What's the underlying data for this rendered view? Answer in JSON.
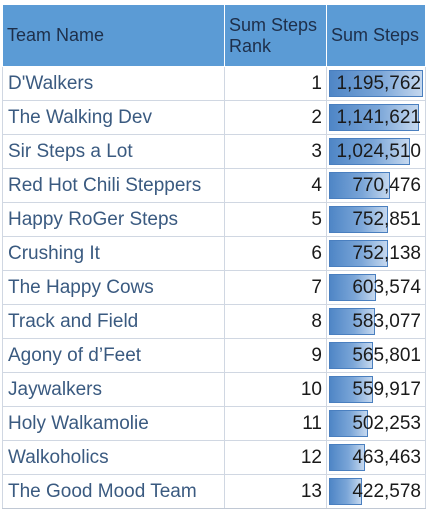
{
  "header": {
    "team": "Team Name",
    "rank": "Sum Steps Rank",
    "steps": "Sum Steps"
  },
  "chart_data": {
    "type": "table",
    "columns": [
      "Team Name",
      "Sum Steps Rank",
      "Sum Steps"
    ],
    "rows": [
      {
        "team": "D'Walkers",
        "rank": "1",
        "steps": "1,195,762",
        "value": 1195762
      },
      {
        "team": "The Walking Dev",
        "rank": "2",
        "steps": "1,141,621",
        "value": 1141621
      },
      {
        "team": "Sir Steps a Lot",
        "rank": "3",
        "steps": "1,024,510",
        "value": 1024510
      },
      {
        "team": "Red Hot Chili Steppers",
        "rank": "4",
        "steps": "770,476",
        "value": 770476
      },
      {
        "team": "Happy RoGer Steps",
        "rank": "5",
        "steps": "752,851",
        "value": 752851
      },
      {
        "team": "Crushing It",
        "rank": "6",
        "steps": "752,138",
        "value": 752138
      },
      {
        "team": "The Happy Cows",
        "rank": "7",
        "steps": "603,574",
        "value": 603574
      },
      {
        "team": "Track and Field",
        "rank": "8",
        "steps": "583,077",
        "value": 583077
      },
      {
        "team": "Agony of d’Feet",
        "rank": "9",
        "steps": "565,801",
        "value": 565801
      },
      {
        "team": "Jaywalkers",
        "rank": "10",
        "steps": "559,917",
        "value": 559917
      },
      {
        "team": "Holy Walkamolie",
        "rank": "11",
        "steps": "502,253",
        "value": 502253
      },
      {
        "team": "Walkoholics",
        "rank": "12",
        "steps": "463,463",
        "value": 463463
      },
      {
        "team": "The Good Mood Team",
        "rank": "13",
        "steps": "422,578",
        "value": 422578
      }
    ],
    "data_bar_max": 1195762,
    "colors": {
      "header": "#5b9bd5",
      "bar": "#5b8fd0",
      "team_text": "#3a5a80"
    }
  }
}
